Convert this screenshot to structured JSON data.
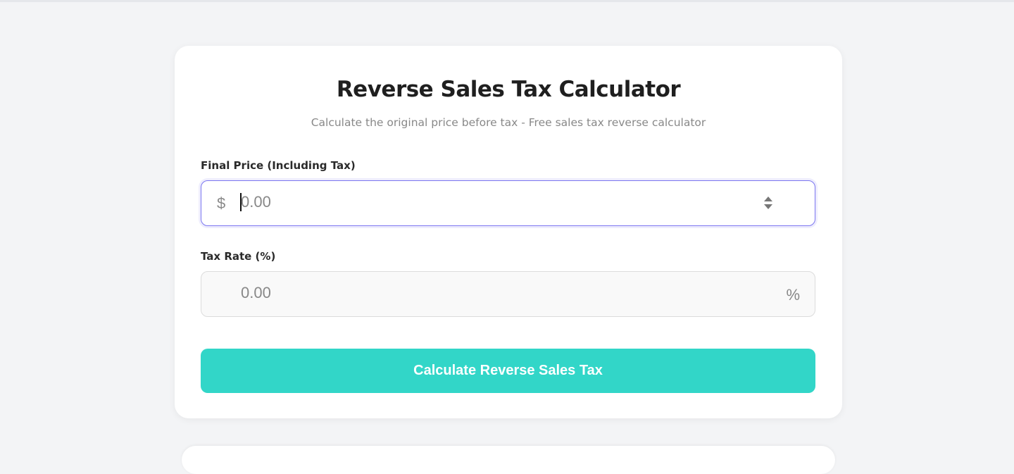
{
  "title": "Reverse Sales Tax Calculator",
  "subtitle": "Calculate the original price before tax - Free sales tax reverse calculator",
  "final_price": {
    "label": "Final Price (Including Tax)",
    "prefix": "$",
    "placeholder": "0.00",
    "value": ""
  },
  "tax_rate": {
    "label": "Tax Rate (%)",
    "suffix": "%",
    "placeholder": "0.00",
    "value": ""
  },
  "button": {
    "label": "Calculate Reverse Sales Tax"
  },
  "colors": {
    "accent": "#32d6c8",
    "focus": "#7b76f0",
    "background": "#f3f4f6"
  },
  "icons": {
    "spinner": "number-stepper-icon"
  }
}
